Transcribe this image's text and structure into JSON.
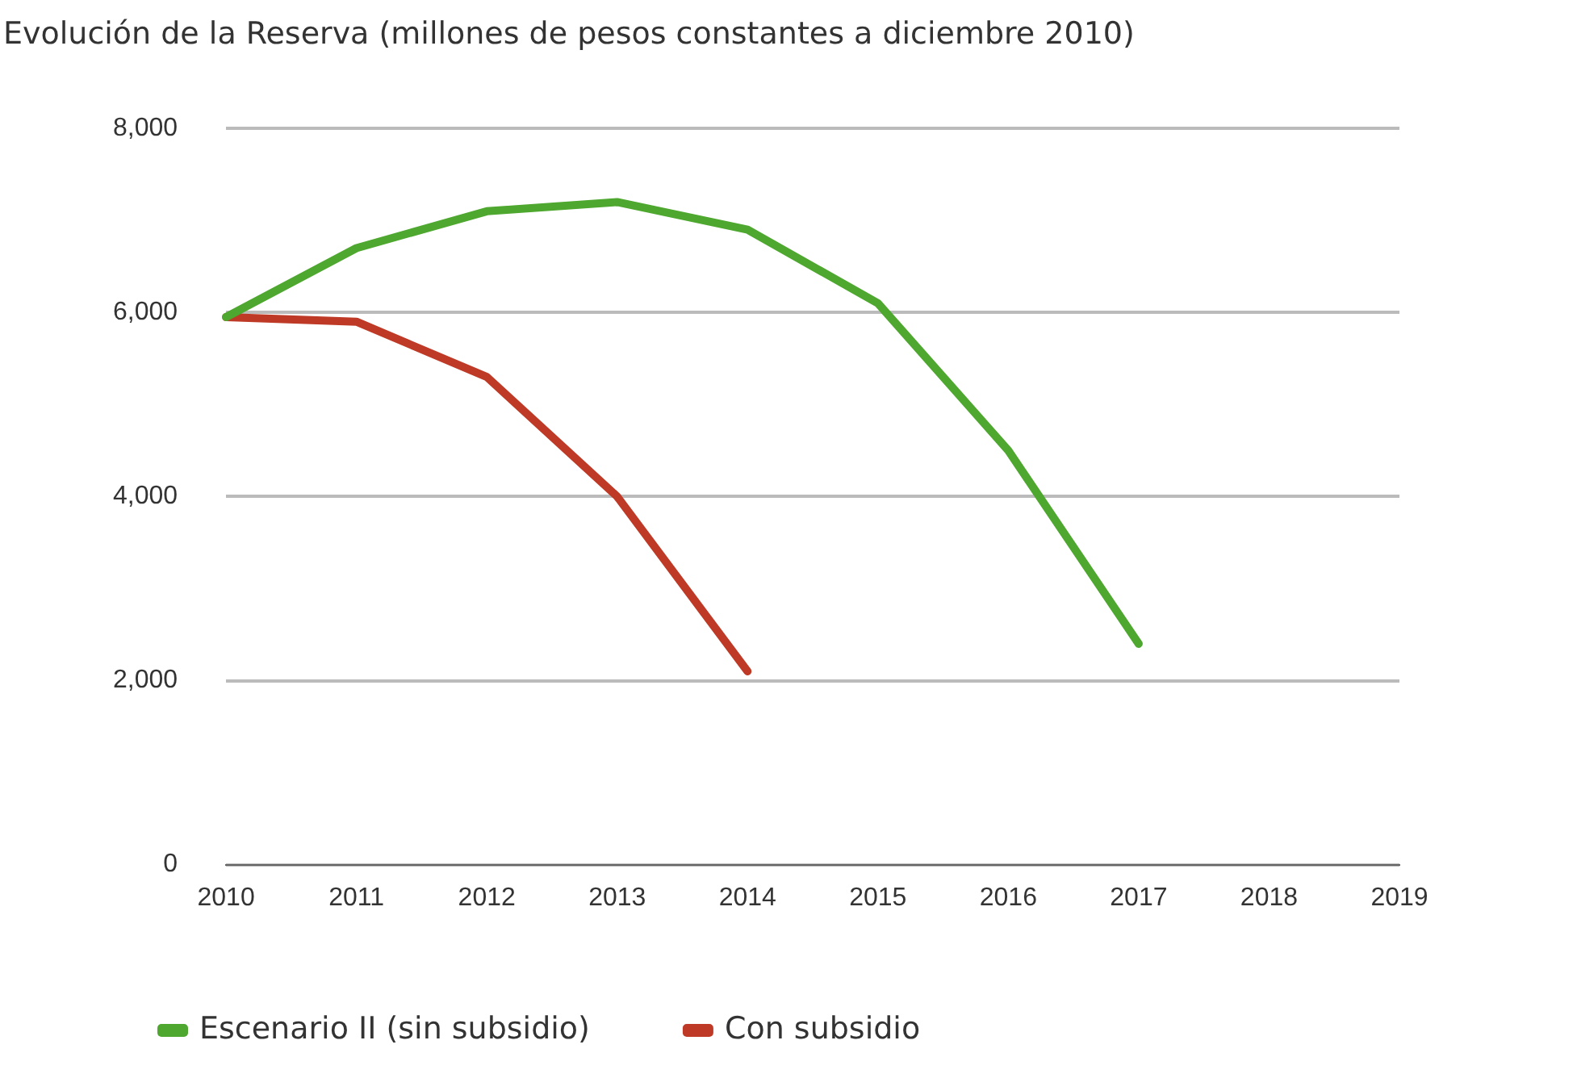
{
  "chart_data": {
    "type": "line",
    "title": "Evolución de la Reserva (millones de pesos constantes a diciembre 2010)",
    "categories": [
      "2010",
      "2011",
      "2012",
      "2013",
      "2014",
      "2015",
      "2016",
      "2017",
      "2018",
      "2019"
    ],
    "series": [
      {
        "name": "Escenario II (sin subsidio)",
        "color": "#4ea72e",
        "values": [
          5950,
          6700,
          7100,
          7200,
          6900,
          6100,
          4500,
          2400,
          null,
          null
        ]
      },
      {
        "name": "Con subsidio",
        "color": "#bf3a26",
        "values": [
          5950,
          5900,
          5300,
          4000,
          2100,
          null,
          null,
          null,
          null,
          null
        ]
      }
    ],
    "ylim": [
      0,
      8000
    ],
    "yticks": [
      {
        "value": 0,
        "label": "0"
      },
      {
        "value": 2000,
        "label": "2,000"
      },
      {
        "value": 4000,
        "label": "4,000"
      },
      {
        "value": 6000,
        "label": "6,000"
      },
      {
        "value": 8000,
        "label": "8,000"
      }
    ],
    "grid": "y",
    "legend": "bottom",
    "marker": "none",
    "line_style": "solid"
  }
}
